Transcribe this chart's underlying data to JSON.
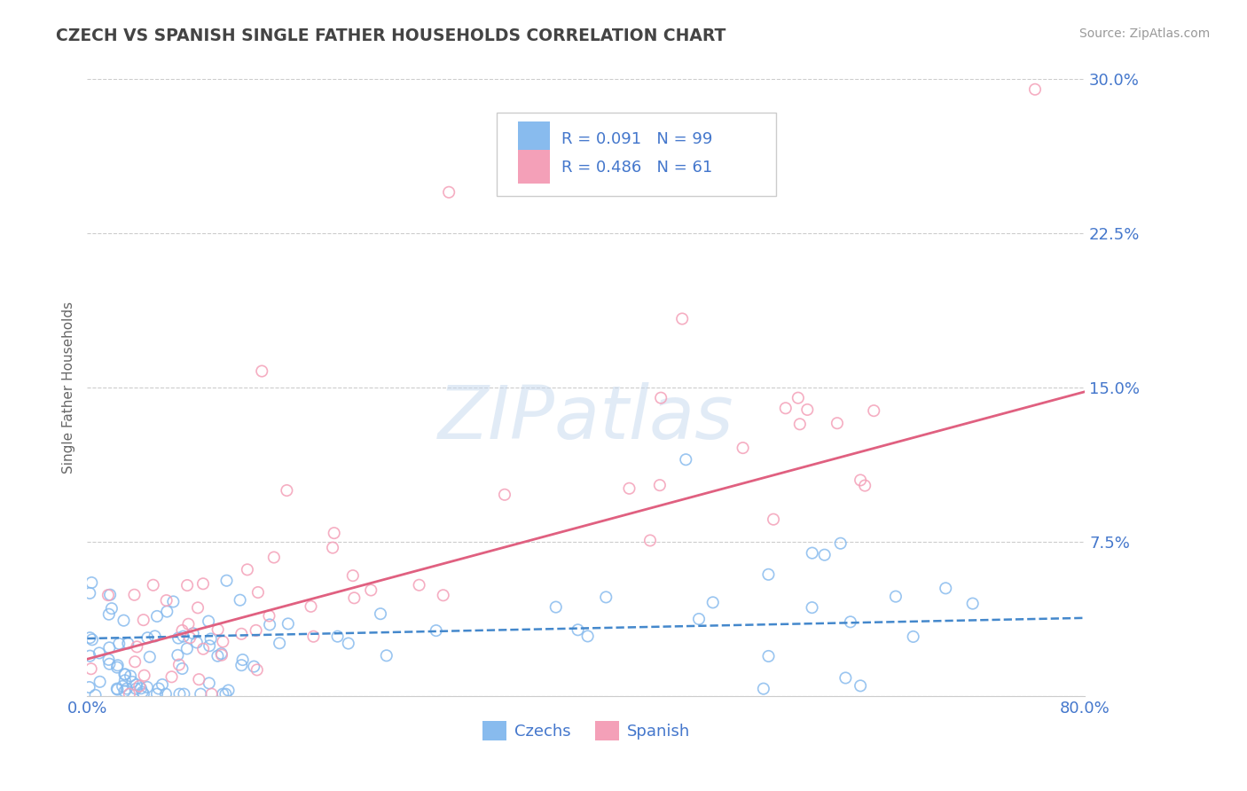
{
  "title": "CZECH VS SPANISH SINGLE FATHER HOUSEHOLDS CORRELATION CHART",
  "source": "Source: ZipAtlas.com",
  "ylabel": "Single Father Households",
  "xlim": [
    0.0,
    0.8
  ],
  "ylim": [
    0.0,
    0.3
  ],
  "xticks": [
    0.0,
    0.8
  ],
  "xticklabels": [
    "0.0%",
    "80.0%"
  ],
  "yticks": [
    0.0,
    0.075,
    0.15,
    0.225,
    0.3
  ],
  "yticklabels": [
    "",
    "7.5%",
    "15.0%",
    "22.5%",
    "30.0%"
  ],
  "grid_color": "#cccccc",
  "background_color": "#ffffff",
  "watermark": "ZIPatlas",
  "czechs_color": "#88bbee",
  "spanish_color": "#f4a0b8",
  "czechs_line_color": "#4488cc",
  "spanish_line_color": "#e06080",
  "czechs_R": 0.091,
  "czechs_N": 99,
  "spanish_R": 0.486,
  "spanish_N": 61,
  "tick_color": "#4477cc",
  "title_color": "#444444",
  "legend_text_color": "#4477cc",
  "czechs_trend": [
    0.005,
    0.022
  ],
  "spanish_trend": [
    0.02,
    0.15
  ]
}
